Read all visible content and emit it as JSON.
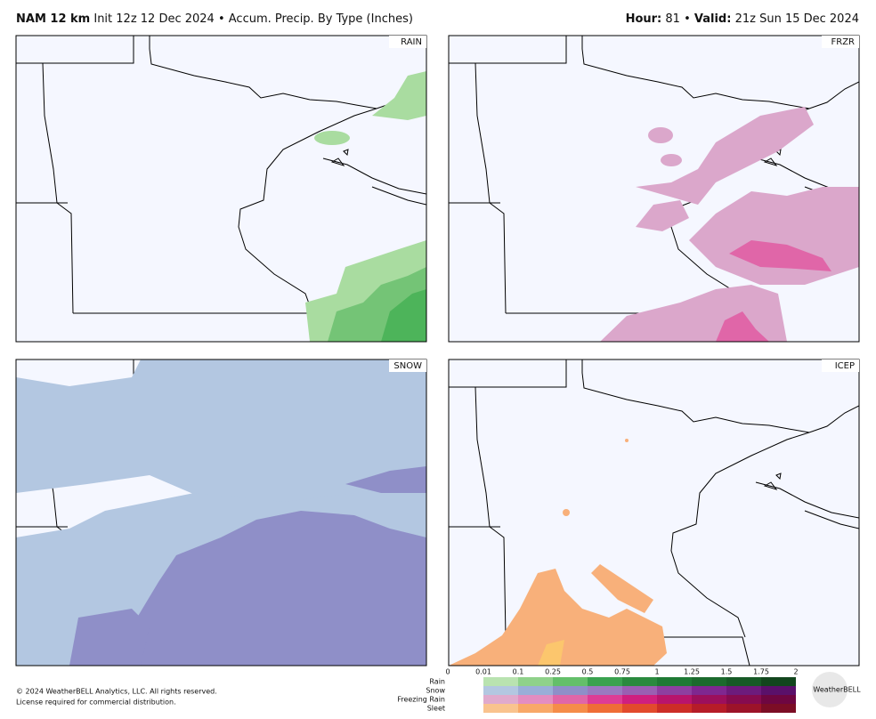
{
  "header": {
    "model": "NAM 12 km",
    "init": "Init 12z 12 Dec 2024 • Accum. Precip. By Type (Inches)",
    "hour_label": "Hour:",
    "hour_value": "81 •",
    "valid_label": "Valid:",
    "valid_value": "21z Sun 15 Dec 2024"
  },
  "panels": [
    {
      "label": "RAIN"
    },
    {
      "label": "FRZR"
    },
    {
      "label": "SNOW"
    },
    {
      "label": "ICEP"
    }
  ],
  "legend": {
    "ticks": [
      "0",
      "0.01",
      "0.1",
      "0.25",
      "0.5",
      "0.75",
      "1",
      "1.25",
      "1.5",
      "1.75",
      "2"
    ],
    "rows": [
      "Rain",
      "Snow",
      "Freezing Rain",
      "Sleet"
    ]
  },
  "footer": {
    "copyright": "© 2024 WeatherBELL Analytics, LLC. All rights reserved.",
    "license": "License required for commercial distribution.",
    "logo": "WeatherBELL"
  }
}
